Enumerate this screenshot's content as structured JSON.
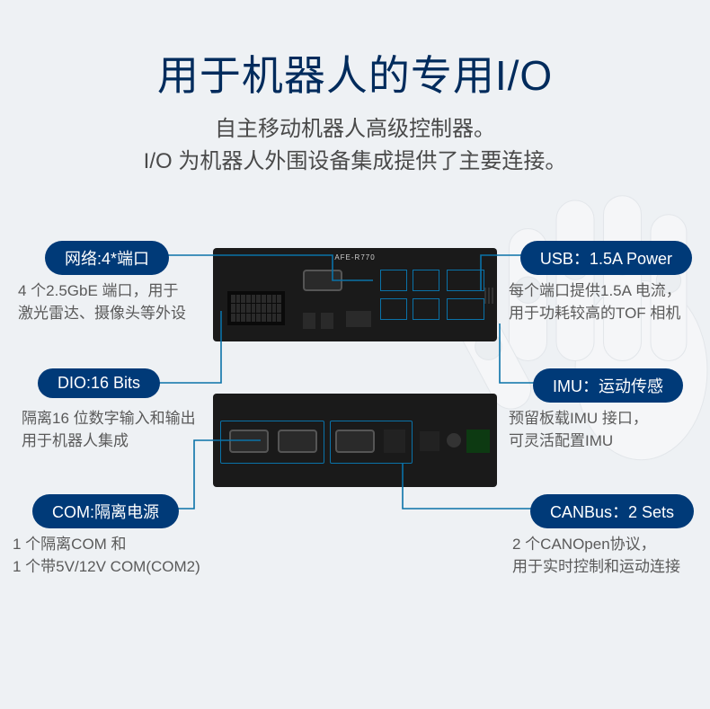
{
  "title": "用于机器人的专用I/O",
  "subtitle_line1": "自主移动机器人高级控制器。",
  "subtitle_line2": "I/O 为机器人外围设备集成提供了主要连接。",
  "device_label": "AFE-R770",
  "colors": {
    "bg": "#eef1f4",
    "title": "#002b5c",
    "subtitle": "#4a4a4a",
    "pill_bg": "#003a78",
    "pill_text": "#ffffff",
    "caption": "#5a5a5a",
    "connector": "#0a72a8",
    "device": "#1a1a1a"
  },
  "features": {
    "left": [
      {
        "pill": "网络:4*端口",
        "caption": "4 个2.5GbE 端口，用于\n激光雷达、摄像头等外设"
      },
      {
        "pill": "DIO:16 Bits",
        "caption": "隔离16 位数字输入和输出\n用于机器人集成"
      },
      {
        "pill": "COM:隔离电源",
        "caption": "1 个隔离COM 和\n1 个带5V/12V COM(COM2)"
      }
    ],
    "right": [
      {
        "pill": "USB：1.5A Power",
        "caption": "每个端口提供1.5A 电流，\n用于功耗较高的TOF 相机"
      },
      {
        "pill": "IMU：运动传感",
        "caption": "预留板载IMU 接口，\n可灵活配置IMU"
      },
      {
        "pill": "CANBus：2 Sets",
        "caption": "2 个CANOpen协议，\n用于实时控制和运动连接"
      }
    ]
  }
}
